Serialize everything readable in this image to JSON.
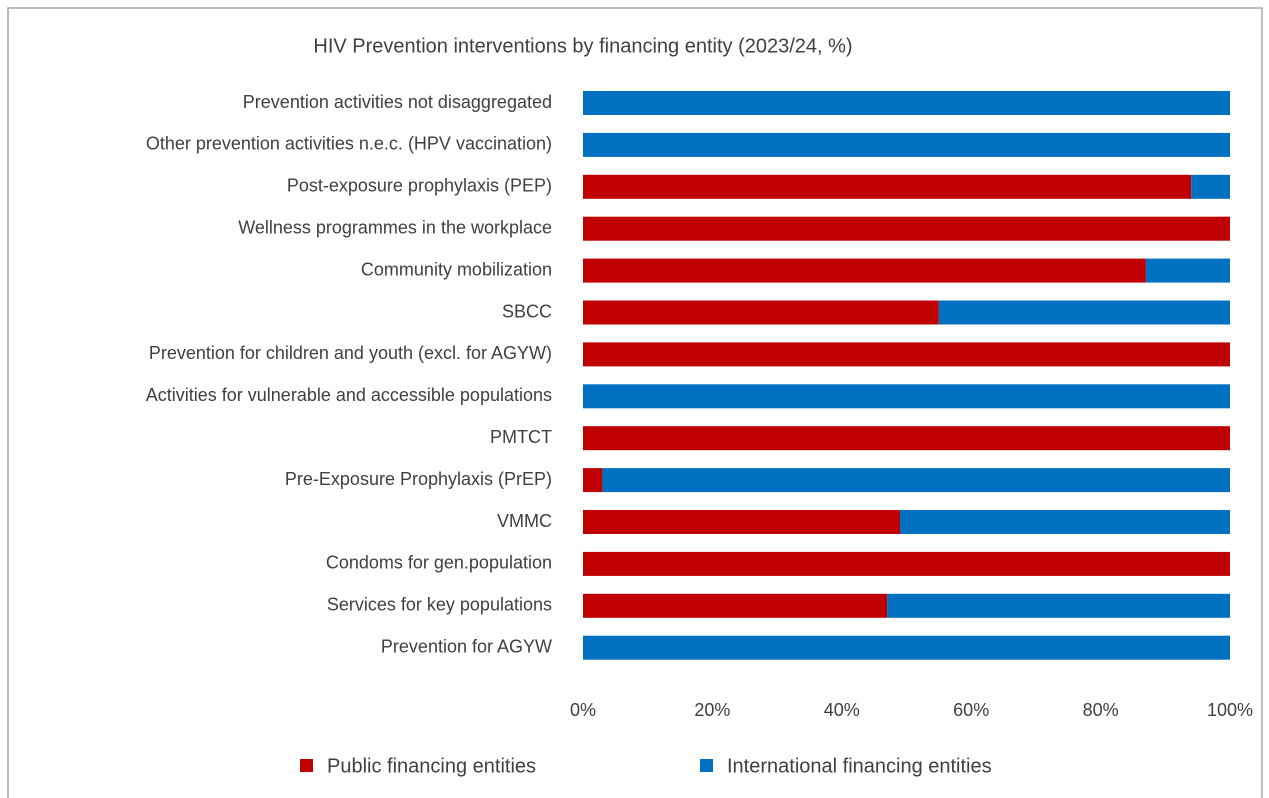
{
  "chart_data": {
    "type": "stacked_barh",
    "title": "HIV Prevention interventions by financing entity (2023/24, %)",
    "categories": [
      "Prevention activities not disaggregated",
      "Other prevention activities n.e.c. (HPV vaccination)",
      "Post-exposure prophylaxis (PEP)",
      "Wellness programmes in the workplace",
      "Community mobilization",
      "SBCC",
      "Prevention for children and youth (excl. for AGYW)",
      "Activities for vulnerable and accessible populations",
      "PMTCT",
      "Pre-Exposure Prophylaxis (PrEP)",
      "VMMC",
      "Condoms for gen.population",
      "Services for key populations",
      "Prevention for AGYW"
    ],
    "series": [
      {
        "name": "Public financing entities",
        "color": "#c00000",
        "values": [
          0,
          0,
          94,
          100,
          87,
          55,
          100,
          0,
          100,
          3,
          49,
          100,
          47,
          0
        ]
      },
      {
        "name": "International financing entities",
        "color": "#0070c0",
        "values": [
          100,
          100,
          6,
          0,
          13,
          45,
          0,
          100,
          0,
          97,
          51,
          0,
          53,
          100
        ]
      }
    ],
    "xlim": [
      0,
      100
    ],
    "xticks": [
      {
        "value": 0,
        "label": "0%"
      },
      {
        "value": 20,
        "label": "20%"
      },
      {
        "value": 40,
        "label": "40%"
      },
      {
        "value": 60,
        "label": "60%"
      },
      {
        "value": 80,
        "label": "80%"
      },
      {
        "value": 100,
        "label": "100%"
      }
    ],
    "grid": false,
    "legend": "bottom"
  }
}
